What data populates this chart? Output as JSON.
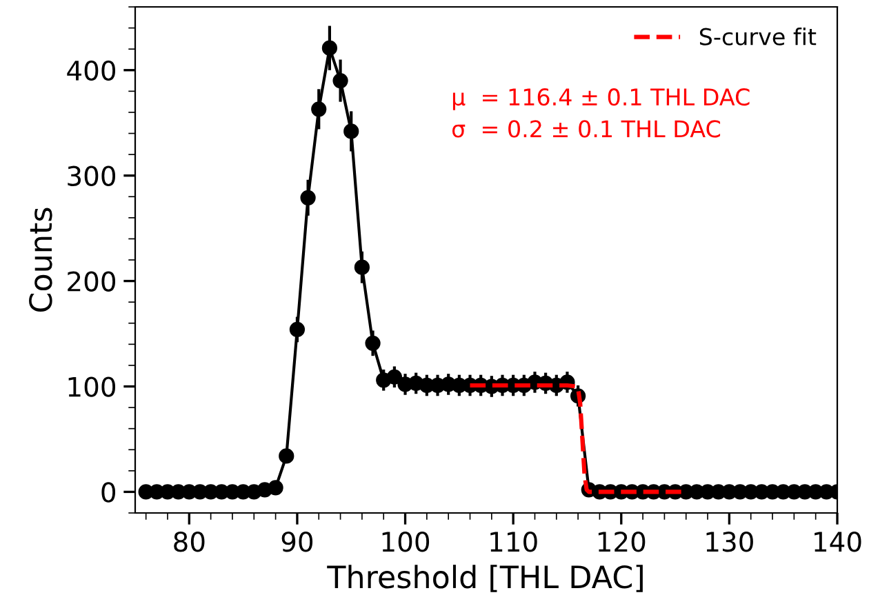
{
  "chart_data": {
    "type": "line",
    "xlabel": "Threshold [THL DAC]",
    "ylabel": "Counts",
    "xlim": [
      75,
      140
    ],
    "ylim": [
      -20,
      460
    ],
    "xticks": [
      80,
      90,
      100,
      110,
      120,
      130,
      140
    ],
    "yticks": [
      0,
      100,
      200,
      300,
      400
    ],
    "grid": false,
    "legend": "top right",
    "annotations": [
      "μ  = 116.4 ± 0.1 THL DAC",
      "σ  = 0.2 ± 0.1 THL DAC"
    ],
    "series": [
      {
        "color": "#000000",
        "marker": "circle",
        "line_style": "solid",
        "x": [
          76,
          77,
          78,
          79,
          80,
          81,
          82,
          83,
          84,
          85,
          86,
          87,
          88,
          89,
          90,
          91,
          92,
          93,
          94,
          95,
          96,
          97,
          98,
          99,
          100,
          101,
          102,
          103,
          104,
          105,
          106,
          107,
          108,
          109,
          110,
          111,
          112,
          113,
          114,
          115,
          116,
          117,
          118,
          119,
          120,
          121,
          122,
          123,
          124,
          125,
          126,
          127,
          128,
          129,
          130,
          131,
          132,
          133,
          134,
          135,
          136,
          137,
          138,
          139,
          140
        ],
        "values": [
          0,
          0,
          0,
          0,
          0,
          0,
          0,
          0,
          0,
          0,
          0,
          2,
          4,
          34,
          154,
          279,
          363,
          421,
          390,
          342,
          213,
          141,
          106,
          109,
          102,
          103,
          101,
          101,
          102,
          101,
          101,
          101,
          100,
          101,
          101,
          101,
          104,
          103,
          101,
          104,
          91,
          2,
          0,
          0,
          0,
          0,
          0,
          0,
          0,
          0,
          0,
          0,
          0,
          0,
          0,
          0,
          0,
          0,
          0,
          0,
          0,
          0,
          0,
          0,
          0
        ],
        "errors": [
          0,
          0,
          0,
          0,
          0,
          0,
          0,
          0,
          0,
          0,
          0,
          1,
          2,
          6,
          12,
          17,
          19,
          21,
          20,
          19,
          15,
          12,
          10,
          10,
          10,
          10,
          10,
          10,
          10,
          10,
          10,
          10,
          10,
          10,
          10,
          10,
          10,
          10,
          10,
          10,
          10,
          1,
          0,
          0,
          0,
          0,
          0,
          0,
          0,
          0,
          0,
          0,
          0,
          0,
          0,
          0,
          0,
          0,
          0,
          0,
          0,
          0,
          0,
          0,
          0
        ]
      },
      {
        "name": "S-curve fit",
        "color": "#ff0000",
        "marker": "none",
        "line_style": "dashed",
        "x": [
          106,
          115,
          115.8,
          116,
          116.2,
          116.4,
          116.6,
          116.8,
          117,
          126
        ],
        "values": [
          101,
          101,
          100,
          98,
          84,
          50,
          16,
          2,
          0,
          0
        ]
      }
    ]
  }
}
